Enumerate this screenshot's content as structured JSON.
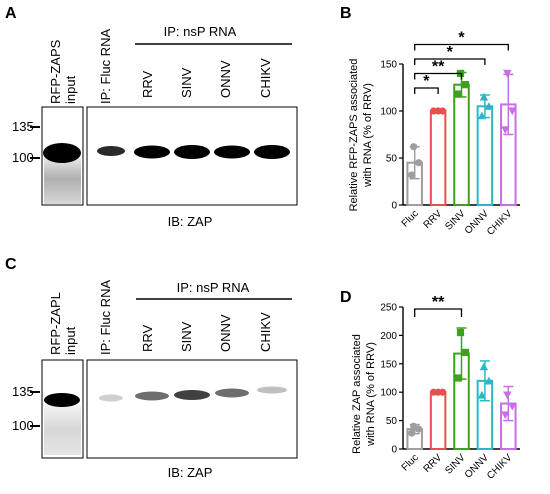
{
  "panels": {
    "A": {
      "letter": "A",
      "input_label_line1": "RFP-ZAPS",
      "input_label_line2": "input",
      "fluc_label": "IP: Fluc RNA",
      "ip_header": "IP: nsP RNA",
      "lanes": [
        "RRV",
        "SINV",
        "ONNV",
        "CHIKV"
      ],
      "markers": [
        "135",
        "100"
      ],
      "blot_label": "IB: ZAP"
    },
    "C": {
      "letter": "C",
      "input_label_line1": "RFP-ZAPL",
      "input_label_line2": "input",
      "fluc_label": "IP: Fluc RNA",
      "ip_header": "IP: nsP RNA",
      "lanes": [
        "RRV",
        "SINV",
        "ONNV",
        "CHIKV"
      ],
      "markers": [
        "135",
        "100"
      ],
      "blot_label": "IB: ZAP"
    }
  },
  "chart_data": [
    {
      "panel": "B",
      "type": "bar",
      "title": "",
      "ylabel_line1": "Relative RFP-ZAPS associated",
      "ylabel_line2": "with RNA (% of RRV)",
      "categories": [
        "Fluc",
        "RRV",
        "SINV",
        "ONNV",
        "CHIKV"
      ],
      "values": [
        45,
        100,
        128,
        105,
        107
      ],
      "errors": [
        17,
        0,
        13,
        12,
        32
      ],
      "points": [
        [
          32,
          45,
          62
        ],
        [
          100,
          100,
          100
        ],
        [
          118,
          128,
          140
        ],
        [
          95,
          105,
          115
        ],
        [
          80,
          100,
          140
        ]
      ],
      "colors": [
        "#9e9e9e",
        "#e8504f",
        "#3f9f1f",
        "#2bb8c6",
        "#c96ee8"
      ],
      "markers": [
        "circle",
        "circle",
        "square",
        "triangle",
        "triangle-down"
      ],
      "ylim": [
        0,
        150
      ],
      "yticks": [
        0,
        50,
        100,
        150
      ],
      "significance": [
        {
          "from": 0,
          "to": 1,
          "label": "*"
        },
        {
          "from": 0,
          "to": 2,
          "label": "**"
        },
        {
          "from": 0,
          "to": 3,
          "label": "*"
        },
        {
          "from": 0,
          "to": 4,
          "label": "*"
        }
      ]
    },
    {
      "panel": "D",
      "type": "bar",
      "title": "",
      "ylabel_line1": "Relative ZAP associated",
      "ylabel_line2": "with RNA (% of RRV)",
      "categories": [
        "Fluc",
        "RRV",
        "SINV",
        "ONNV",
        "CHIKV"
      ],
      "values": [
        35,
        100,
        168,
        120,
        80
      ],
      "errors": [
        8,
        0,
        45,
        35,
        30
      ],
      "points": [
        [
          28,
          35,
          40
        ],
        [
          100,
          100,
          100
        ],
        [
          125,
          170,
          205
        ],
        [
          95,
          120,
          145
        ],
        [
          60,
          75,
          95
        ]
      ],
      "colors": [
        "#9e9e9e",
        "#e8504f",
        "#3f9f1f",
        "#2bb8c6",
        "#c96ee8"
      ],
      "markers": [
        "circle",
        "circle",
        "square",
        "triangle",
        "triangle-down"
      ],
      "ylim": [
        0,
        250
      ],
      "yticks": [
        0,
        50,
        100,
        150,
        200,
        250
      ],
      "significance": [
        {
          "from": 0,
          "to": 2,
          "label": "**"
        }
      ]
    }
  ],
  "panel_letters": {
    "B": "B",
    "D": "D"
  }
}
